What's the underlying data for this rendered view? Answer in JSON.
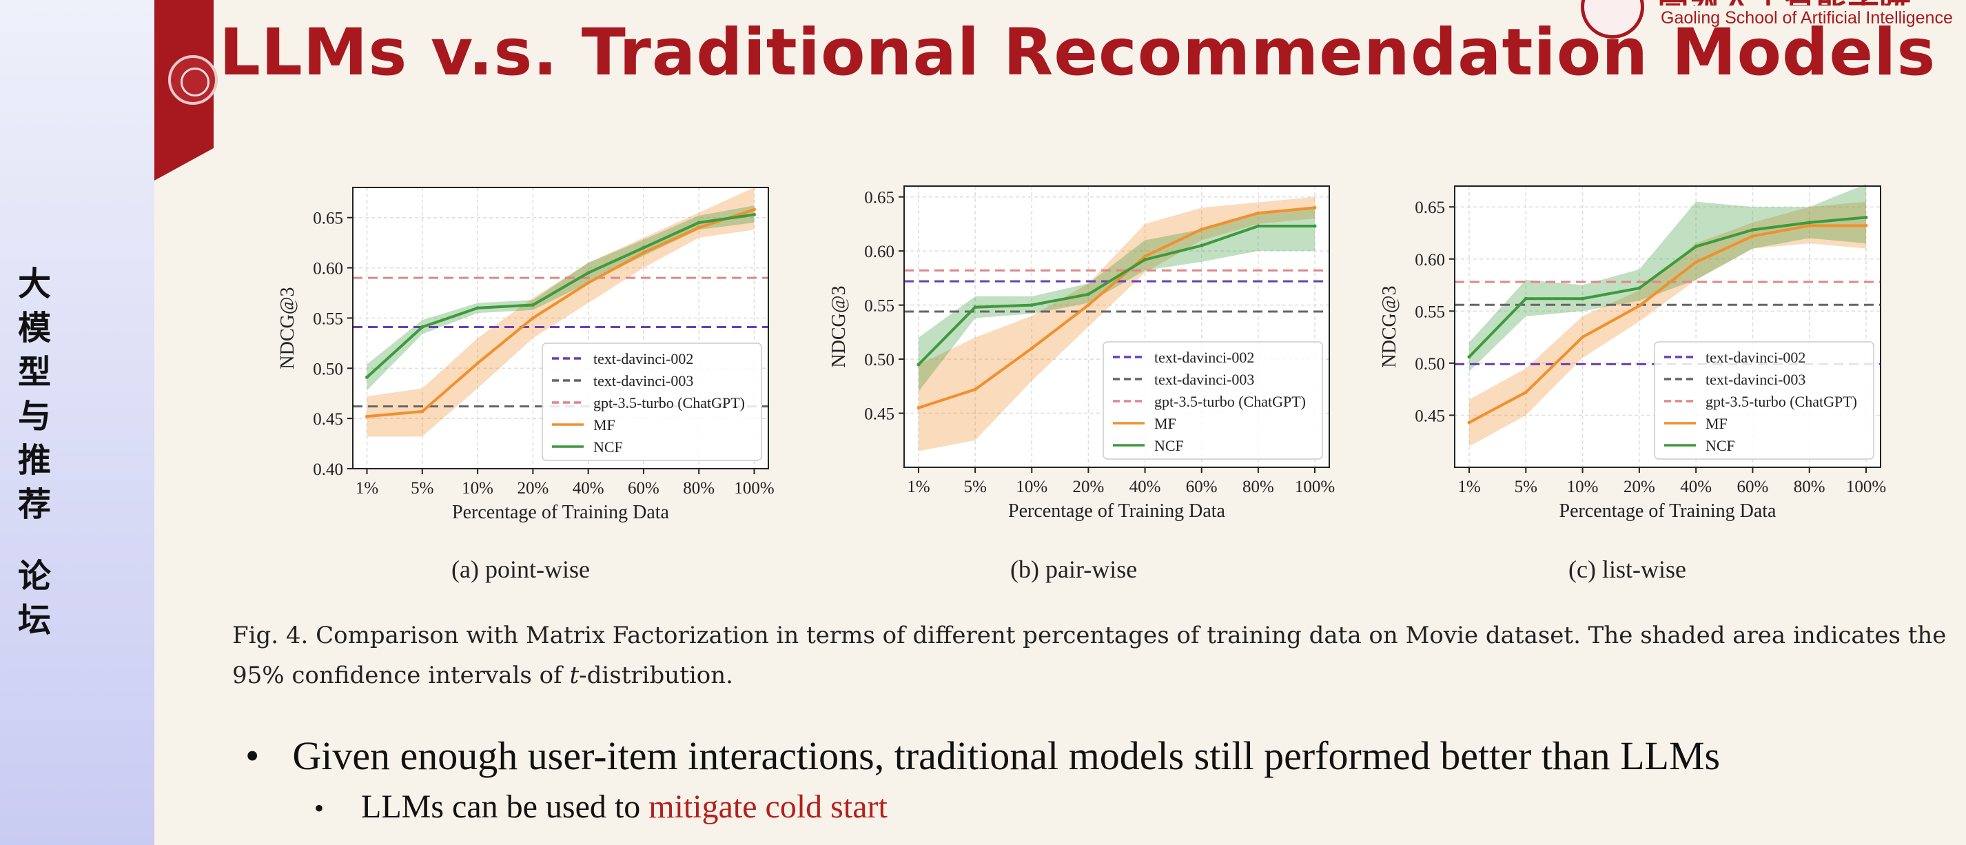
{
  "sidebar": {
    "chars": [
      "大",
      "模",
      "型",
      "与",
      "推",
      "荐",
      "论",
      "坛"
    ]
  },
  "slide": {
    "title": "LLMs v.s. Traditional Recommendation Models"
  },
  "logo": {
    "cn": "高瓴人工智能学院",
    "en": "Gaoling School of Artificial Intelligence"
  },
  "figure": {
    "caption_part1": "Fig. 4.  Comparison with Matrix Factorization in terms of different percentages of training data on Movie dataset. The shaded area indicates the 95% confidence intervals of ",
    "caption_italic": "t",
    "caption_part2": "-distribution."
  },
  "bullets": {
    "main": "Given enough user-item interactions, traditional models still performed better than LLMs",
    "sub_prefix": "LLMs can be used to ",
    "sub_highlight": "mitigate cold start"
  },
  "colors": {
    "accent": "#a8181f",
    "davinci002": "#6a3fb5",
    "davinci003": "#666666",
    "chatgpt": "#e0868a",
    "mf": "#f0902e",
    "ncf": "#3d9a3d"
  },
  "chart_data": [
    {
      "type": "line",
      "subcaption": "(a)  point-wise",
      "xlabel": "Percentage of Training Data",
      "ylabel": "NDCG@3",
      "categories": [
        "1%",
        "5%",
        "10%",
        "20%",
        "40%",
        "60%",
        "80%",
        "100%"
      ],
      "ylim": [
        0.4,
        0.68
      ],
      "yticks": [
        0.4,
        0.45,
        0.5,
        0.55,
        0.6,
        0.65
      ],
      "grid": true,
      "legend_position": "lower-right",
      "baselines": [
        {
          "name": "text-davinci-002",
          "value": 0.541
        },
        {
          "name": "text-davinci-003",
          "value": 0.462
        },
        {
          "name": "gpt-3.5-turbo (ChatGPT)",
          "value": 0.59
        }
      ],
      "series": [
        {
          "name": "MF",
          "values": [
            0.452,
            0.457,
            0.505,
            0.55,
            0.585,
            0.615,
            0.64,
            0.658
          ],
          "lower": [
            0.432,
            0.432,
            0.48,
            0.53,
            0.565,
            0.6,
            0.63,
            0.638
          ],
          "upper": [
            0.472,
            0.48,
            0.53,
            0.57,
            0.605,
            0.63,
            0.655,
            0.68
          ]
        },
        {
          "name": "NCF",
          "values": [
            0.491,
            0.541,
            0.56,
            0.563,
            0.595,
            0.62,
            0.645,
            0.653
          ],
          "lower": [
            0.478,
            0.534,
            0.555,
            0.558,
            0.585,
            0.612,
            0.638,
            0.645
          ],
          "upper": [
            0.504,
            0.548,
            0.565,
            0.568,
            0.605,
            0.628,
            0.652,
            0.662
          ]
        }
      ]
    },
    {
      "type": "line",
      "subcaption": "(b)  pair-wise",
      "xlabel": "Percentage of Training Data",
      "ylabel": "NDCG@3",
      "categories": [
        "1%",
        "5%",
        "10%",
        "20%",
        "40%",
        "60%",
        "80%",
        "100%"
      ],
      "ylim": [
        0.4,
        0.66
      ],
      "yticks": [
        0.45,
        0.5,
        0.55,
        0.6,
        0.65
      ],
      "grid": true,
      "legend_position": "lower-right",
      "baselines": [
        {
          "name": "text-davinci-002",
          "value": 0.572
        },
        {
          "name": "text-davinci-003",
          "value": 0.544
        },
        {
          "name": "gpt-3.5-turbo (ChatGPT)",
          "value": 0.582
        }
      ],
      "series": [
        {
          "name": "MF",
          "values": [
            0.455,
            0.472,
            0.51,
            0.55,
            0.595,
            0.62,
            0.635,
            0.64
          ],
          "lower": [
            0.415,
            0.425,
            0.48,
            0.53,
            0.58,
            0.61,
            0.625,
            0.63
          ],
          "upper": [
            0.495,
            0.52,
            0.54,
            0.57,
            0.625,
            0.64,
            0.645,
            0.65
          ]
        },
        {
          "name": "NCF",
          "values": [
            0.495,
            0.548,
            0.55,
            0.56,
            0.592,
            0.605,
            0.623,
            0.623
          ],
          "lower": [
            0.47,
            0.538,
            0.542,
            0.552,
            0.582,
            0.59,
            0.6,
            0.6
          ],
          "upper": [
            0.52,
            0.558,
            0.558,
            0.57,
            0.61,
            0.62,
            0.635,
            0.64
          ]
        }
      ]
    },
    {
      "type": "line",
      "subcaption": "(c)  list-wise",
      "xlabel": "Percentage of Training Data",
      "ylabel": "NDCG@3",
      "categories": [
        "1%",
        "5%",
        "10%",
        "20%",
        "40%",
        "60%",
        "80%",
        "100%"
      ],
      "ylim": [
        0.4,
        0.67
      ],
      "yticks": [
        0.45,
        0.5,
        0.55,
        0.6,
        0.65
      ],
      "grid": true,
      "legend_position": "lower-right",
      "baselines": [
        {
          "name": "text-davinci-002",
          "value": 0.499
        },
        {
          "name": "text-davinci-003",
          "value": 0.556
        },
        {
          "name": "gpt-3.5-turbo (ChatGPT)",
          "value": 0.578
        }
      ],
      "series": [
        {
          "name": "MF",
          "values": [
            0.443,
            0.472,
            0.525,
            0.555,
            0.597,
            0.622,
            0.632,
            0.632
          ],
          "lower": [
            0.42,
            0.45,
            0.505,
            0.54,
            0.58,
            0.61,
            0.615,
            0.61
          ],
          "upper": [
            0.465,
            0.495,
            0.545,
            0.57,
            0.615,
            0.635,
            0.65,
            0.655
          ]
        },
        {
          "name": "NCF",
          "values": [
            0.506,
            0.562,
            0.562,
            0.572,
            0.612,
            0.628,
            0.635,
            0.64
          ],
          "lower": [
            0.492,
            0.545,
            0.55,
            0.56,
            0.58,
            0.61,
            0.62,
            0.615
          ],
          "upper": [
            0.52,
            0.58,
            0.575,
            0.59,
            0.655,
            0.65,
            0.65,
            0.672
          ]
        }
      ]
    }
  ]
}
